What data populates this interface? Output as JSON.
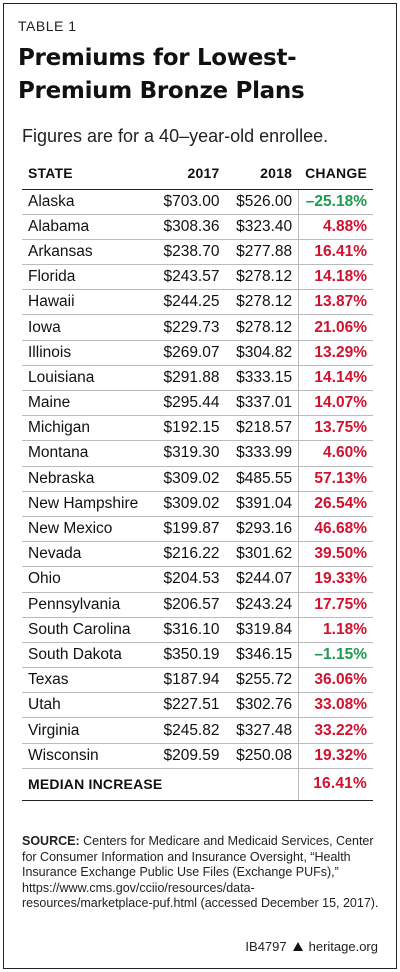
{
  "header": {
    "table_label": "TABLE 1",
    "title": "Premiums for Lowest-Premium Bronze Plans",
    "subtitle": "Figures are for a 40–year-old enrollee."
  },
  "chart_data": {
    "type": "table",
    "columns": [
      "STATE",
      "2017",
      "2018",
      "CHANGE"
    ],
    "rows": [
      {
        "state": "Alaska",
        "y2017": "$703.00",
        "y2018": "$526.00",
        "change": "–25.18%",
        "dir": "down"
      },
      {
        "state": "Alabama",
        "y2017": "$308.36",
        "y2018": "$323.40",
        "change": "4.88%",
        "dir": "up"
      },
      {
        "state": "Arkansas",
        "y2017": "$238.70",
        "y2018": "$277.88",
        "change": "16.41%",
        "dir": "up"
      },
      {
        "state": "Florida",
        "y2017": "$243.57",
        "y2018": "$278.12",
        "change": "14.18%",
        "dir": "up"
      },
      {
        "state": "Hawaii",
        "y2017": "$244.25",
        "y2018": "$278.12",
        "change": "13.87%",
        "dir": "up"
      },
      {
        "state": "Iowa",
        "y2017": "$229.73",
        "y2018": "$278.12",
        "change": "21.06%",
        "dir": "up"
      },
      {
        "state": "Illinois",
        "y2017": "$269.07",
        "y2018": "$304.82",
        "change": "13.29%",
        "dir": "up"
      },
      {
        "state": "Louisiana",
        "y2017": "$291.88",
        "y2018": "$333.15",
        "change": "14.14%",
        "dir": "up"
      },
      {
        "state": "Maine",
        "y2017": "$295.44",
        "y2018": "$337.01",
        "change": "14.07%",
        "dir": "up"
      },
      {
        "state": "Michigan",
        "y2017": "$192.15",
        "y2018": "$218.57",
        "change": "13.75%",
        "dir": "up"
      },
      {
        "state": "Montana",
        "y2017": "$319.30",
        "y2018": "$333.99",
        "change": "4.60%",
        "dir": "up"
      },
      {
        "state": "Nebraska",
        "y2017": "$309.02",
        "y2018": "$485.55",
        "change": "57.13%",
        "dir": "up"
      },
      {
        "state": "New Hampshire",
        "y2017": "$309.02",
        "y2018": "$391.04",
        "change": "26.54%",
        "dir": "up"
      },
      {
        "state": "New Mexico",
        "y2017": "$199.87",
        "y2018": "$293.16",
        "change": "46.68%",
        "dir": "up"
      },
      {
        "state": "Nevada",
        "y2017": "$216.22",
        "y2018": "$301.62",
        "change": "39.50%",
        "dir": "up"
      },
      {
        "state": "Ohio",
        "y2017": "$204.53",
        "y2018": "$244.07",
        "change": "19.33%",
        "dir": "up"
      },
      {
        "state": "Pennsylvania",
        "y2017": "$206.57",
        "y2018": "$243.24",
        "change": "17.75%",
        "dir": "up"
      },
      {
        "state": "South Carolina",
        "y2017": "$316.10",
        "y2018": "$319.84",
        "change": "1.18%",
        "dir": "up"
      },
      {
        "state": "South Dakota",
        "y2017": "$350.19",
        "y2018": "$346.15",
        "change": "–1.15%",
        "dir": "down"
      },
      {
        "state": "Texas",
        "y2017": "$187.94",
        "y2018": "$255.72",
        "change": "36.06%",
        "dir": "up"
      },
      {
        "state": "Utah",
        "y2017": "$227.51",
        "y2018": "$302.76",
        "change": "33.08%",
        "dir": "up"
      },
      {
        "state": "Virginia",
        "y2017": "$245.82",
        "y2018": "$327.48",
        "change": "33.22%",
        "dir": "up"
      },
      {
        "state": "Wisconsin",
        "y2017": "$209.59",
        "y2018": "$250.08",
        "change": "19.32%",
        "dir": "up"
      }
    ],
    "median": {
      "label": "MEDIAN INCREASE",
      "change": "16.41%"
    }
  },
  "colors": {
    "increase": "#d0122f",
    "decrease": "#1f9a4e"
  },
  "source": {
    "label": "SOURCE:",
    "text": "Centers for Medicare and Medicaid Services, Center for Consumer Information and Insurance Oversight, “Health Insurance Exchange Public Use Files (Exchange PUFs),” https://www.cms.gov/cciio/resources/data-resources/marketplace-puf.html (accessed December 15, 2017)."
  },
  "footer": {
    "code": "IB4797",
    "site": "heritage.org"
  }
}
